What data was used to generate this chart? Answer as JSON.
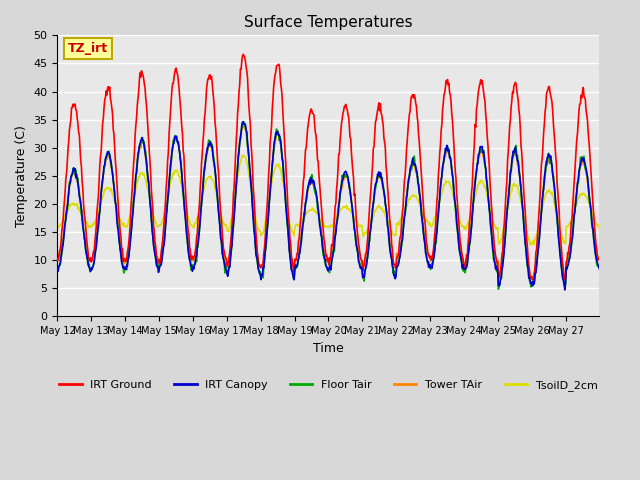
{
  "title": "Surface Temperatures",
  "xlabel": "Time",
  "ylabel": "Temperature (C)",
  "ylim": [
    0,
    50
  ],
  "plot_bg": "#e8e8e8",
  "fig_bg": "#d8d8d8",
  "annotation_text": "TZ_irt",
  "annotation_bg": "#ffff99",
  "annotation_border": "#bbaa00",
  "legend_entries": [
    "IRT Ground",
    "IRT Canopy",
    "Floor Tair",
    "Tower TAir",
    "TsoilD_2cm"
  ],
  "legend_colors": [
    "#ff0000",
    "#0000cc",
    "#00aa00",
    "#ff8800",
    "#dddd00"
  ],
  "x_tick_labels": [
    "May 12",
    "May 13",
    "May 14",
    "May 15",
    "May 16",
    "May 17",
    "May 18",
    "May 19",
    "May 20",
    "May 21",
    "May 22",
    "May 23",
    "May 24",
    "May 25",
    "May 26",
    "May 27"
  ],
  "num_days": 16,
  "irt_ground_peaks": [
    38,
    41,
    43.5,
    44,
    43,
    46.5,
    45,
    36.5,
    37.5,
    37.5,
    39.5,
    42,
    42,
    41.5,
    40.5,
    40
  ],
  "irt_ground_mins": [
    10,
    10,
    10,
    10,
    10,
    9,
    8.5,
    10,
    10,
    8.5,
    10.5,
    10,
    9.5,
    7,
    7,
    10
  ]
}
